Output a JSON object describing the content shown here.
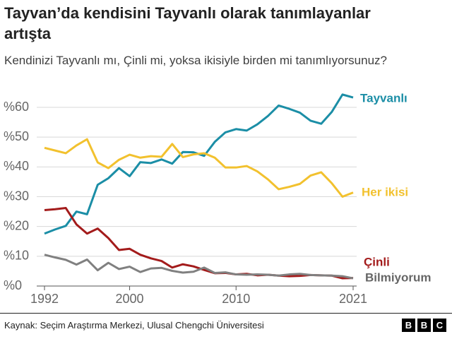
{
  "chart_data": {
    "type": "line",
    "title": "Tayvan’da kendisini Tayvanlı olarak tanımlayanlar artışta",
    "subtitle": "Kendinizi Tayvanlı mı, Çinli mi, yoksa ikisiyle birden mi tanımlıyorsunuz?",
    "source": "Kaynak: Seçim Araştırma Merkezi, Ulusal Chengchi Üniversitesi",
    "logo_letters": [
      "B",
      "B",
      "C"
    ],
    "x": [
      1992,
      1993,
      1994,
      1995,
      1996,
      1997,
      1998,
      1999,
      2000,
      2001,
      2002,
      2003,
      2004,
      2005,
      2006,
      2007,
      2008,
      2009,
      2010,
      2011,
      2012,
      2013,
      2014,
      2015,
      2016,
      2017,
      2018,
      2019,
      2020,
      2021
    ],
    "xlim": [
      1992,
      2021
    ],
    "xticks": [
      1992,
      2000,
      2010,
      2021
    ],
    "ylim": [
      0,
      60
    ],
    "yticks": [
      {
        "value": 0,
        "label": "%0"
      },
      {
        "value": 10,
        "label": "%10"
      },
      {
        "value": 20,
        "label": "%20"
      },
      {
        "value": 30,
        "label": "%30"
      },
      {
        "value": 40,
        "label": "%40"
      },
      {
        "value": 50,
        "label": "%50"
      },
      {
        "value": 60,
        "label": "%60"
      }
    ],
    "grid": true,
    "series": [
      {
        "name": "Tayvanlı",
        "color": "#1b8ea6",
        "values": [
          17.6,
          19,
          20.2,
          25,
          24.1,
          34,
          36.2,
          39.6,
          36.9,
          41.6,
          41.3,
          42.5,
          41.1,
          45,
          44.9,
          43.7,
          48.4,
          51.6,
          52.7,
          52.2,
          54.3,
          57.1,
          60.6,
          59.5,
          58.2,
          55.5,
          54.5,
          58.5,
          64.3,
          63.3
        ]
      },
      {
        "name": "Her ikisi",
        "color": "#f2c12e",
        "values": [
          46.4,
          45.5,
          44.6,
          47.2,
          49.3,
          41.5,
          39.6,
          42.4,
          44.1,
          43.1,
          43.6,
          43.4,
          47.7,
          43.3,
          44.2,
          44.6,
          43.1,
          39.8,
          39.8,
          40.3,
          38.5,
          35.8,
          32.5,
          33.3,
          34.3,
          37.1,
          38.2,
          34.5,
          30,
          31.4
        ]
      },
      {
        "name": "Çinli",
        "color": "#a31b1b",
        "values": [
          25.5,
          25.8,
          26.2,
          20.7,
          17.6,
          19.3,
          16.1,
          12.1,
          12.5,
          10.5,
          9.3,
          8.4,
          6.2,
          7.3,
          6.6,
          5.4,
          4.3,
          4.4,
          3.9,
          4.1,
          3.6,
          3.8,
          3.5,
          3.3,
          3.4,
          3.7,
          3.6,
          3.5,
          2.6,
          2.7
        ]
      },
      {
        "name": "Bilmiyorum",
        "color": "#808080",
        "values": [
          10.5,
          9.6,
          8.8,
          7.2,
          8.9,
          5.3,
          7.8,
          5.7,
          6.5,
          4.7,
          5.9,
          6.1,
          5.1,
          4.5,
          4.8,
          6.2,
          4.4,
          4.6,
          3.9,
          3.8,
          3.9,
          3.8,
          3.5,
          3.9,
          4.1,
          3.7,
          3.6,
          3.5,
          3.3,
          2.6
        ]
      }
    ]
  }
}
